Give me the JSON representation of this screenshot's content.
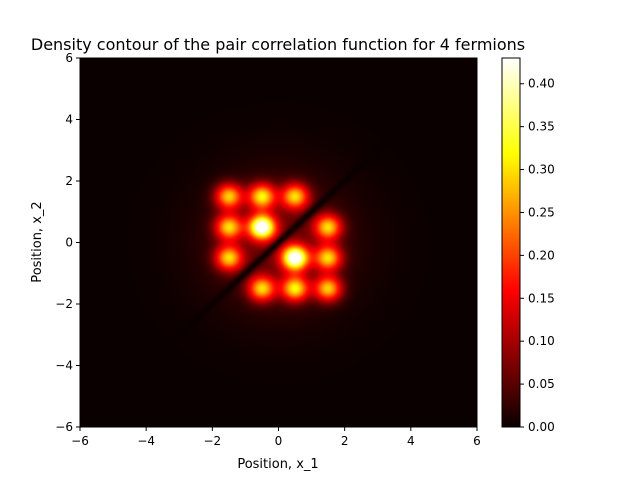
{
  "chart_data": {
    "type": "heatmap",
    "title": "Density contour of the pair correlation function for 4 fermions",
    "xlabel": "Position, x_1",
    "ylabel": "Position, x_2",
    "xlim": [
      -6,
      6
    ],
    "ylim": [
      -6,
      6
    ],
    "xticks": [
      -6,
      -4,
      -2,
      0,
      2,
      4,
      6
    ],
    "yticks": [
      -6,
      -4,
      -2,
      0,
      2,
      4,
      6
    ],
    "tick_labels": [
      "−6",
      "−4",
      "−2",
      "0",
      "2",
      "4",
      "6"
    ],
    "colormap": "hot",
    "colorbar": {
      "min": 0.0,
      "max": 0.43,
      "ticks": [
        "0.00",
        "0.05",
        "0.10",
        "0.15",
        "0.20",
        "0.25",
        "0.30",
        "0.35",
        "0.40"
      ],
      "tick_values": [
        0.0,
        0.05,
        0.1,
        0.15,
        0.2,
        0.25,
        0.3,
        0.35,
        0.4
      ]
    },
    "peaks": [
      {
        "x": -1.5,
        "y": 1.5,
        "value": 0.27
      },
      {
        "x": -0.5,
        "y": 1.5,
        "value": 0.29
      },
      {
        "x": 0.5,
        "y": 1.5,
        "value": 0.27
      },
      {
        "x": -1.5,
        "y": 0.5,
        "value": 0.27
      },
      {
        "x": -0.5,
        "y": 0.5,
        "value": 0.43
      },
      {
        "x": 1.5,
        "y": 0.5,
        "value": 0.27
      },
      {
        "x": -1.5,
        "y": -0.5,
        "value": 0.27
      },
      {
        "x": 0.5,
        "y": -0.5,
        "value": 0.43
      },
      {
        "x": 1.5,
        "y": -0.5,
        "value": 0.27
      },
      {
        "x": -0.5,
        "y": -1.5,
        "value": 0.27
      },
      {
        "x": 0.5,
        "y": -1.5,
        "value": 0.29
      },
      {
        "x": 1.5,
        "y": -1.5,
        "value": 0.27
      }
    ],
    "nodal_line": "x_1 = x_2",
    "grid": false
  }
}
